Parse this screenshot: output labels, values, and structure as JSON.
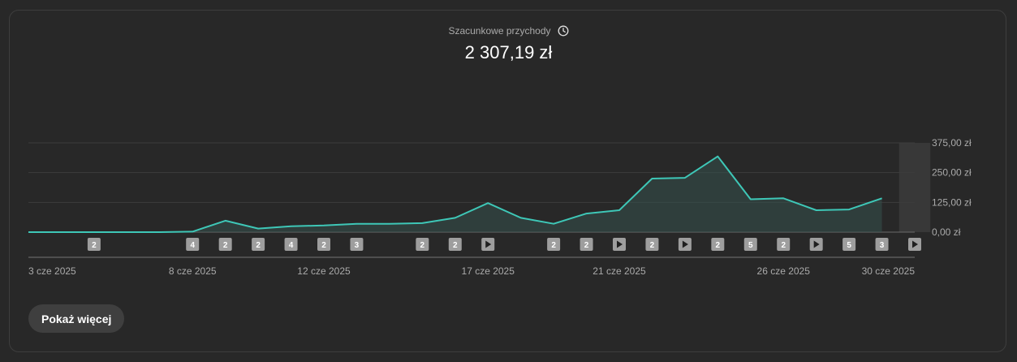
{
  "header": {
    "title": "Szacunkowe przychody",
    "value": "2 307,19 zł"
  },
  "buttons": {
    "show_more": "Pokaż więcej"
  },
  "colors": {
    "line": "#3ec7b7",
    "area": "#34504d",
    "grid": "#3c3c3c",
    "marker_bg": "#9e9e9e",
    "text_muted": "#aaaaaa"
  },
  "chart_data": {
    "type": "area",
    "y_ticks": [
      "375,00 zł",
      "250,00 zł",
      "125,00 zł",
      "0,00 zł"
    ],
    "ylim": [
      0,
      375
    ],
    "x_tick_labels": [
      "3 cze 2025",
      "8 cze 2025",
      "12 cze 2025",
      "17 cze 2025",
      "21 cze 2025",
      "26 cze 2025",
      "30 cze 2025"
    ],
    "x_tick_days": [
      3,
      8,
      12,
      17,
      21,
      26,
      30
    ],
    "x": [
      3,
      4,
      5,
      6,
      7,
      8,
      9,
      10,
      11,
      12,
      13,
      14,
      15,
      16,
      17,
      18,
      19,
      20,
      21,
      22,
      23,
      24,
      25,
      26,
      27,
      28,
      29,
      30
    ],
    "values": [
      0,
      0,
      0,
      0,
      0,
      2,
      48,
      15,
      25,
      28,
      35,
      35,
      38,
      60,
      122,
      60,
      35,
      78,
      92,
      225,
      228,
      318,
      138,
      142,
      92,
      95,
      142,
      0
    ],
    "highlight_day": 30,
    "markers": [
      {
        "day": 5,
        "label": "2"
      },
      {
        "day": 8,
        "label": "4"
      },
      {
        "day": 9,
        "label": "2"
      },
      {
        "day": 10,
        "label": "2"
      },
      {
        "day": 11,
        "label": "4"
      },
      {
        "day": 12,
        "label": "2"
      },
      {
        "day": 13,
        "label": "3"
      },
      {
        "day": 15,
        "label": "2"
      },
      {
        "day": 16,
        "label": "2"
      },
      {
        "day": 17,
        "label": "video"
      },
      {
        "day": 19,
        "label": "2"
      },
      {
        "day": 20,
        "label": "2"
      },
      {
        "day": 21,
        "label": "video"
      },
      {
        "day": 22,
        "label": "2"
      },
      {
        "day": 23,
        "label": "video"
      },
      {
        "day": 24,
        "label": "2"
      },
      {
        "day": 25,
        "label": "5"
      },
      {
        "day": 26,
        "label": "2"
      },
      {
        "day": 27,
        "label": "video"
      },
      {
        "day": 28,
        "label": "5"
      },
      {
        "day": 29,
        "label": "3"
      },
      {
        "day": 30,
        "label": "video"
      }
    ]
  }
}
